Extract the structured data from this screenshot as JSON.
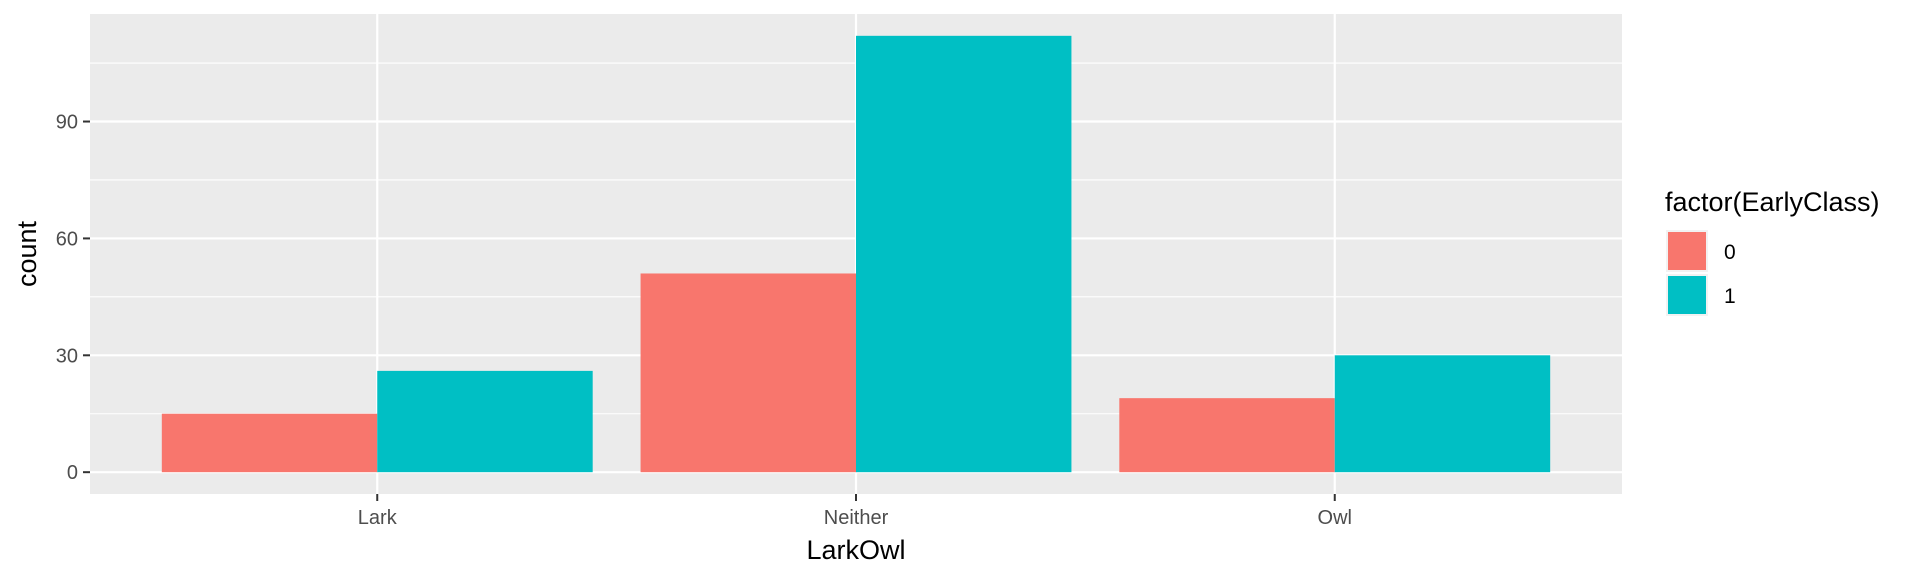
{
  "chart_data": {
    "type": "bar",
    "categories": [
      "Lark",
      "Neither",
      "Owl"
    ],
    "series": [
      {
        "name": "0",
        "values": [
          15,
          51,
          19
        ],
        "color": "#F8766D"
      },
      {
        "name": "1",
        "values": [
          26,
          112,
          30
        ],
        "color": "#00BFC4"
      }
    ],
    "xlabel": "LarkOwl",
    "ylabel": "count",
    "ylim": [
      -5.6,
      117.6
    ],
    "yticks": [
      0,
      30,
      60,
      90
    ],
    "ytick_labels": [
      "0",
      "30",
      "60",
      "90"
    ],
    "legend": {
      "title": "factor(EarlyClass)",
      "placement": "right"
    },
    "grid": true,
    "panel_background": "#EBEBEB",
    "grid_color": "#FFFFFF",
    "bar_position": "dodge"
  }
}
